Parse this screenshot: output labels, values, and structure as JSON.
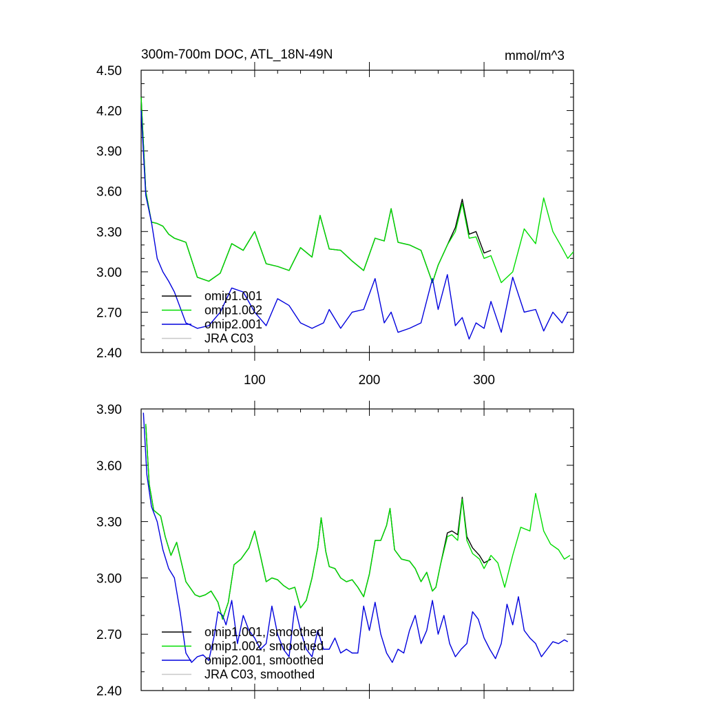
{
  "chart_data": [
    {
      "type": "line",
      "title": "300m-700m DOC, ATL_18N-49N",
      "units": "mmol/m^3",
      "xlim": [
        1,
        378
      ],
      "ylim": [
        2.4,
        4.5
      ],
      "xticks": [
        100,
        200,
        300
      ],
      "xtick_labels": [
        "100",
        "200",
        "300"
      ],
      "yticks": [
        2.4,
        2.7,
        3.0,
        3.3,
        3.6,
        3.9,
        4.2,
        4.5
      ],
      "ytick_labels": [
        "2.40",
        "2.70",
        "3.00",
        "3.30",
        "3.60",
        "3.90",
        "4.20",
        "4.50"
      ],
      "legend_placement": "bottom-left",
      "series": [
        {
          "name": "omip1.001",
          "color": "#000000",
          "x": [
            1,
            5,
            10,
            15,
            20,
            25,
            30,
            40,
            50,
            60,
            70,
            80,
            90,
            100,
            110,
            120,
            130,
            140,
            150,
            157,
            165,
            175,
            185,
            195,
            205,
            213,
            219,
            225,
            235,
            245,
            255,
            260,
            268,
            275,
            281,
            287,
            293,
            300,
            306
          ],
          "y": [
            4.3,
            3.6,
            3.37,
            3.36,
            3.34,
            3.28,
            3.25,
            3.22,
            2.96,
            2.93,
            2.99,
            3.21,
            3.16,
            3.3,
            3.06,
            3.04,
            3.01,
            3.18,
            3.11,
            3.42,
            3.17,
            3.16,
            3.08,
            3.01,
            3.25,
            3.23,
            3.47,
            3.22,
            3.2,
            3.16,
            2.92,
            3.05,
            3.2,
            3.33,
            3.54,
            3.28,
            3.3,
            3.14,
            3.16
          ]
        },
        {
          "name": "omip1.002",
          "color": "#00dd00",
          "x": [
            1,
            5,
            10,
            15,
            20,
            25,
            30,
            40,
            50,
            60,
            70,
            80,
            90,
            100,
            110,
            120,
            130,
            140,
            150,
            157,
            165,
            175,
            185,
            195,
            205,
            213,
            219,
            225,
            235,
            245,
            255,
            260,
            268,
            275,
            281,
            287,
            293,
            300,
            306,
            315,
            325,
            335,
            345,
            352,
            360,
            368,
            373,
            378
          ],
          "y": [
            4.3,
            3.6,
            3.37,
            3.36,
            3.34,
            3.28,
            3.25,
            3.22,
            2.96,
            2.93,
            2.99,
            3.21,
            3.16,
            3.3,
            3.06,
            3.04,
            3.01,
            3.18,
            3.11,
            3.42,
            3.17,
            3.16,
            3.08,
            3.01,
            3.25,
            3.23,
            3.47,
            3.22,
            3.2,
            3.16,
            2.92,
            3.05,
            3.2,
            3.3,
            3.51,
            3.25,
            3.26,
            3.1,
            3.12,
            2.92,
            3.0,
            3.32,
            3.21,
            3.55,
            3.3,
            3.18,
            3.1,
            3.15
          ]
        },
        {
          "name": "omip2.001",
          "color": "#0000dd",
          "x": [
            1,
            5,
            10,
            15,
            20,
            25,
            30,
            40,
            50,
            60,
            70,
            80,
            90,
            100,
            110,
            120,
            130,
            140,
            150,
            160,
            165,
            175,
            185,
            195,
            205,
            213,
            219,
            225,
            235,
            245,
            255,
            260,
            268,
            275,
            281,
            287,
            293,
            300,
            306,
            315,
            325,
            335,
            345,
            352,
            360,
            368,
            373
          ],
          "y": [
            4.2,
            3.57,
            3.37,
            3.1,
            3.0,
            2.93,
            2.85,
            2.62,
            2.58,
            2.6,
            2.7,
            2.88,
            2.85,
            2.7,
            2.6,
            2.8,
            2.75,
            2.62,
            2.58,
            2.62,
            2.72,
            2.58,
            2.7,
            2.72,
            2.95,
            2.62,
            2.7,
            2.55,
            2.58,
            2.62,
            2.95,
            2.72,
            2.98,
            2.6,
            2.66,
            2.5,
            2.62,
            2.58,
            2.78,
            2.55,
            2.96,
            2.7,
            2.72,
            2.56,
            2.7,
            2.62,
            2.7
          ]
        },
        {
          "name": "JRA C03",
          "color": "#c8c8c8",
          "x": [],
          "y": []
        }
      ]
    },
    {
      "type": "line",
      "xlim": [
        1,
        378
      ],
      "ylim": [
        2.4,
        3.9
      ],
      "xticks": [
        100,
        200,
        300
      ],
      "xtick_labels": [
        "",
        "",
        ""
      ],
      "yticks": [
        2.4,
        2.7,
        3.0,
        3.3,
        3.6,
        3.9
      ],
      "ytick_labels": [
        "2.40",
        "2.70",
        "3.00",
        "3.30",
        "3.60",
        "3.90"
      ],
      "legend_placement": "bottom-left",
      "series": [
        {
          "name": "omip1.001, smoothed",
          "color": "#000000",
          "x": [
            5,
            8,
            12,
            18,
            22,
            27,
            32,
            40,
            48,
            52,
            57,
            62,
            68,
            72,
            77,
            82,
            88,
            95,
            100,
            105,
            110,
            115,
            120,
            125,
            130,
            135,
            140,
            145,
            150,
            155,
            158,
            162,
            165,
            170,
            175,
            180,
            185,
            190,
            195,
            200,
            205,
            210,
            215,
            218,
            222,
            228,
            235,
            240,
            245,
            250,
            255,
            258,
            262,
            268,
            272,
            277,
            281,
            285,
            290,
            296,
            300,
            306
          ],
          "y": [
            3.82,
            3.5,
            3.36,
            3.33,
            3.22,
            3.12,
            3.19,
            2.98,
            2.91,
            2.9,
            2.91,
            2.93,
            2.87,
            2.78,
            2.87,
            3.07,
            3.1,
            3.16,
            3.25,
            3.12,
            2.98,
            3.0,
            2.99,
            2.96,
            2.94,
            2.95,
            2.84,
            2.88,
            3.0,
            3.16,
            3.32,
            3.14,
            3.06,
            3.05,
            3.0,
            2.98,
            2.99,
            2.95,
            2.9,
            3.02,
            3.2,
            3.2,
            3.28,
            3.37,
            3.15,
            3.1,
            3.09,
            3.05,
            2.98,
            3.03,
            2.93,
            2.95,
            3.07,
            3.24,
            3.25,
            3.23,
            3.43,
            3.22,
            3.16,
            3.12,
            3.08,
            3.1
          ]
        },
        {
          "name": "omip1.002, smoothed",
          "color": "#00dd00",
          "x": [
            5,
            8,
            12,
            18,
            22,
            27,
            32,
            40,
            48,
            52,
            57,
            62,
            68,
            72,
            77,
            82,
            88,
            95,
            100,
            105,
            110,
            115,
            120,
            125,
            130,
            135,
            140,
            145,
            150,
            155,
            158,
            162,
            165,
            170,
            175,
            180,
            185,
            190,
            195,
            200,
            205,
            210,
            215,
            218,
            222,
            228,
            235,
            240,
            245,
            250,
            255,
            258,
            262,
            268,
            272,
            277,
            281,
            285,
            290,
            296,
            300,
            306,
            312,
            318,
            325,
            332,
            340,
            345,
            352,
            358,
            365,
            370,
            375
          ],
          "y": [
            3.82,
            3.5,
            3.36,
            3.33,
            3.22,
            3.12,
            3.19,
            2.98,
            2.91,
            2.9,
            2.91,
            2.93,
            2.87,
            2.78,
            2.87,
            3.07,
            3.1,
            3.16,
            3.25,
            3.12,
            2.98,
            3.0,
            2.99,
            2.96,
            2.94,
            2.95,
            2.84,
            2.88,
            3.0,
            3.16,
            3.32,
            3.14,
            3.06,
            3.05,
            3.0,
            2.98,
            2.99,
            2.95,
            2.9,
            3.02,
            3.2,
            3.2,
            3.28,
            3.37,
            3.15,
            3.1,
            3.09,
            3.05,
            2.98,
            3.03,
            2.93,
            2.95,
            3.07,
            3.22,
            3.23,
            3.2,
            3.42,
            3.2,
            3.13,
            3.1,
            3.05,
            3.12,
            3.08,
            2.95,
            3.12,
            3.27,
            3.25,
            3.45,
            3.25,
            3.18,
            3.15,
            3.1,
            3.12
          ]
        },
        {
          "name": "omip2.001, smoothed",
          "color": "#0000dd",
          "x": [
            3,
            6,
            10,
            15,
            20,
            25,
            30,
            35,
            40,
            45,
            50,
            55,
            60,
            65,
            68,
            72,
            75,
            80,
            85,
            90,
            95,
            100,
            105,
            110,
            115,
            120,
            125,
            130,
            135,
            140,
            145,
            150,
            155,
            160,
            165,
            170,
            175,
            180,
            185,
            190,
            195,
            200,
            205,
            210,
            215,
            220,
            225,
            230,
            235,
            240,
            245,
            250,
            255,
            260,
            265,
            270,
            275,
            280,
            285,
            290,
            295,
            300,
            305,
            310,
            315,
            320,
            325,
            330,
            335,
            340,
            345,
            350,
            355,
            360,
            365,
            370,
            373
          ],
          "y": [
            3.88,
            3.55,
            3.38,
            3.3,
            3.15,
            3.05,
            3.0,
            2.82,
            2.6,
            2.55,
            2.58,
            2.59,
            2.56,
            2.7,
            2.82,
            2.8,
            2.75,
            2.88,
            2.65,
            2.8,
            2.72,
            2.68,
            2.62,
            2.65,
            2.85,
            2.7,
            2.62,
            2.58,
            2.85,
            2.72,
            2.62,
            2.58,
            2.72,
            2.62,
            2.62,
            2.68,
            2.6,
            2.62,
            2.6,
            2.6,
            2.85,
            2.72,
            2.87,
            2.7,
            2.6,
            2.55,
            2.62,
            2.6,
            2.72,
            2.8,
            2.65,
            2.72,
            2.88,
            2.7,
            2.8,
            2.65,
            2.58,
            2.62,
            2.65,
            2.82,
            2.78,
            2.68,
            2.62,
            2.57,
            2.65,
            2.86,
            2.75,
            2.9,
            2.72,
            2.68,
            2.65,
            2.58,
            2.62,
            2.66,
            2.65,
            2.67,
            2.66
          ]
        },
        {
          "name": "JRA C03, smoothed",
          "color": "#c8c8c8",
          "x": [],
          "y": []
        }
      ]
    }
  ]
}
